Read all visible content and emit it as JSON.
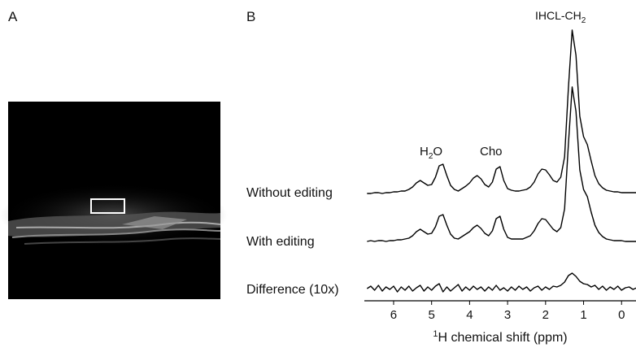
{
  "panels": [
    "A",
    "B"
  ],
  "chart_data": {
    "type": "line",
    "xlabel": {
      "sup": "1",
      "text": "H chemical shift (ppm)"
    },
    "annotations": [
      {
        "text": "IHCL-CH",
        "sub": "2"
      },
      {
        "text": "H",
        "sub": "2",
        "tail": "O"
      },
      {
        "text": "Cho"
      }
    ],
    "xlim": [
      6.77,
      -0.38
    ],
    "xticks": [
      6,
      5,
      4,
      3,
      2,
      1,
      0
    ],
    "x": [
      6.7,
      6.6,
      6.5,
      6.4,
      6.3,
      6.2,
      6.1,
      6.0,
      5.9,
      5.8,
      5.7,
      5.6,
      5.5,
      5.4,
      5.3,
      5.2,
      5.1,
      5.0,
      4.9,
      4.8,
      4.7,
      4.6,
      4.5,
      4.4,
      4.3,
      4.2,
      4.1,
      4.0,
      3.9,
      3.8,
      3.7,
      3.6,
      3.5,
      3.4,
      3.3,
      3.2,
      3.1,
      3.0,
      2.9,
      2.8,
      2.7,
      2.6,
      2.5,
      2.4,
      2.3,
      2.2,
      2.1,
      2.0,
      1.9,
      1.8,
      1.7,
      1.6,
      1.5,
      1.4,
      1.3,
      1.2,
      1.1,
      1.0,
      0.9,
      0.8,
      0.7,
      0.6,
      0.5,
      0.4,
      0.3,
      0.2,
      0.1,
      0.0,
      -0.1,
      -0.2,
      -0.3,
      -0.4
    ],
    "series": [
      {
        "name": "Without editing",
        "color": "#000000",
        "values": [
          0,
          0,
          1,
          1,
          0,
          1,
          1,
          2,
          2,
          3,
          3,
          5,
          8,
          13,
          16,
          13,
          10,
          11,
          20,
          34,
          36,
          22,
          10,
          5,
          3,
          6,
          9,
          13,
          19,
          22,
          18,
          11,
          8,
          14,
          30,
          33,
          16,
          6,
          4,
          3,
          3,
          4,
          5,
          8,
          14,
          24,
          30,
          29,
          23,
          16,
          14,
          20,
          45,
          130,
          201,
          170,
          95,
          70,
          60,
          40,
          22,
          12,
          7,
          4,
          3,
          2,
          2,
          1,
          1,
          1,
          1,
          1
        ]
      },
      {
        "name": "With editing",
        "color": "#000000",
        "values": [
          0,
          1,
          0,
          1,
          1,
          0,
          1,
          1,
          2,
          2,
          3,
          4,
          7,
          12,
          15,
          12,
          9,
          10,
          18,
          31,
          33,
          20,
          9,
          4,
          3,
          6,
          9,
          12,
          17,
          20,
          16,
          10,
          7,
          13,
          28,
          31,
          15,
          5,
          3,
          3,
          3,
          3,
          5,
          7,
          13,
          22,
          28,
          27,
          21,
          15,
          12,
          17,
          40,
          120,
          190,
          160,
          88,
          64,
          55,
          36,
          20,
          11,
          6,
          3,
          2,
          1,
          1,
          1,
          0,
          0,
          0,
          0
        ]
      },
      {
        "name": "Difference (10x)",
        "color": "#000000",
        "values": [
          0,
          3,
          -2,
          4,
          -3,
          2,
          -1,
          3,
          -4,
          2,
          -2,
          3,
          -3,
          1,
          4,
          -3,
          2,
          -2,
          3,
          6,
          -4,
          2,
          -3,
          1,
          5,
          -3,
          2,
          -2,
          3,
          -1,
          2,
          -3,
          2,
          -2,
          4,
          -2,
          1,
          -3,
          2,
          -2,
          3,
          -1,
          2,
          -3,
          1,
          3,
          -2,
          2,
          -1,
          3,
          2,
          4,
          8,
          16,
          19,
          15,
          9,
          6,
          5,
          2,
          4,
          -1,
          3,
          -2,
          2,
          -1,
          3,
          -2,
          1,
          2,
          -1,
          1
        ]
      }
    ]
  }
}
